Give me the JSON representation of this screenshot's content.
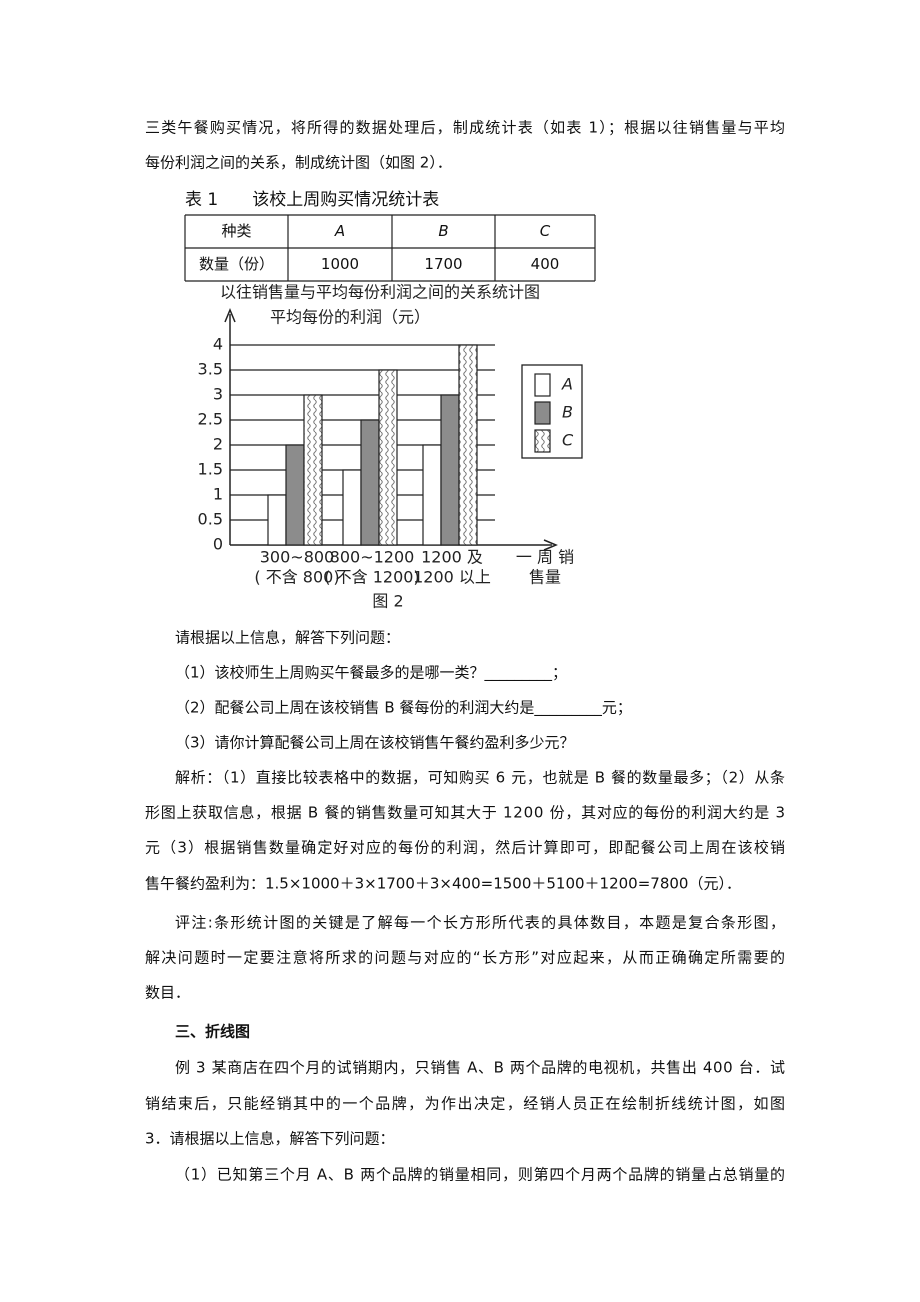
{
  "intro": [
    "三类午餐购买情况，将所得的数据处理后，制成统计表（如表 1）；根据以往销售量与平均",
    "每份利润之间的关系，制成统计图（如图 2）．"
  ],
  "table": {
    "caption": "表 1　　该校上周购买情况统计表",
    "header": [
      "种类",
      "A",
      "B",
      "C"
    ],
    "rows": [
      [
        "数量（份）",
        1000,
        1700,
        400
      ]
    ]
  },
  "chart_data": {
    "type": "bar",
    "title": "以往销售量与平均每份利润之间的关系统计图",
    "y_label": "平均每份的利润（元）",
    "categories": [
      [
        "300~800",
        "( 不含 800)"
      ],
      [
        "800~1200",
        "( 不含 1200)"
      ],
      [
        "1200 及",
        "1200 以上"
      ]
    ],
    "x_label": [
      "一 周 销",
      "售量"
    ],
    "caption": "图 2",
    "series": [
      {
        "name": "A",
        "color": "#ffffff",
        "values": [
          1,
          1.5,
          2
        ]
      },
      {
        "name": "B",
        "color": "#8c8c8c",
        "values": [
          2,
          2.5,
          3
        ]
      },
      {
        "name": "C",
        "color": "#ffffff",
        "pattern": "wave",
        "values": [
          3,
          3.5,
          4
        ]
      }
    ],
    "ylim": [
      0,
      4
    ],
    "yticks": [
      0,
      0.5,
      1,
      1.5,
      2,
      2.5,
      3,
      3.5,
      4
    ],
    "grid": true,
    "legend": "right"
  },
  "questions": {
    "prompt": "请根据以上信息，解答下列问题：",
    "items": [
      "（1）该校师生上周购买午餐最多的是哪一类？_________；",
      "（2）配餐公司上周在该校销售 B 餐每份的利润大约是_________元；",
      "（3）请你计算配餐公司上周在该校销售午餐约盈利多少元？"
    ]
  },
  "analysis": [
    "解析：（1）直接比较表格中的数据，可知购买 6 元，也就是 B 餐的数量最多；（2）从条",
    "形图上获取信息，根据 B 餐的销售数量可知其大于 1200 份，其对应的每份的利润大约是 3",
    "元（3）根据销售数量确定好对应的每份的利润，然后计算即可，即配餐公司上周在该校销",
    "售午餐约盈利为：1.5×1000＋3×1700＋3×400=1500＋5100＋1200=7800（元）．"
  ],
  "comment": [
    "评注:条形统计图的关键是了解每一个长方形所代表的具体数目，本题是复合条形图，",
    "解决问题时一定要注意将所求的问题与对应的“长方形”对应起来，从而正确确定所需要的",
    "数目．"
  ],
  "section_heading": "三、折线图",
  "example": [
    "例 3 某商店在四个月的试销期内，只销售 A、B 两个品牌的电视机，共售出 400 台．试",
    "销结束后，只能经销其中的一个品牌，为作出决定，经销人员正在绘制折线统计图，如图",
    "3．请根据以上信息，解答下列问题：",
    "（1）已知第三个月 A、B 两个品牌的销量相同，则第四个月两个品牌的销量占总销量的"
  ]
}
